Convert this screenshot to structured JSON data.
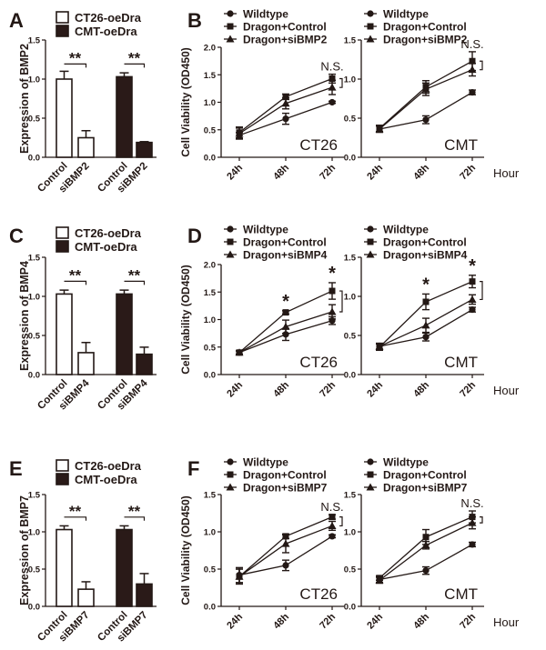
{
  "chart_data": [
    {
      "panel": "A",
      "type": "bar",
      "ylabel": "Expression of BMP2",
      "ylim": [
        0,
        1.5
      ],
      "yticks": [
        "0.0",
        "0.5",
        "1.0",
        "1.5"
      ],
      "legend": [
        {
          "name": "CT26-oeDra",
          "color": "#ffffff"
        },
        {
          "name": "CMT-oeDra",
          "color": "#2a1a18"
        }
      ],
      "categories": [
        "Control",
        "siBMP2",
        "Control",
        "siBMP2"
      ],
      "groups": [
        0,
        0,
        1,
        1
      ],
      "values": [
        1.0,
        0.25,
        1.03,
        0.19
      ],
      "errors": [
        0.1,
        0.09,
        0.05,
        0.01
      ],
      "annotations": [
        "**",
        "**"
      ]
    },
    {
      "panel": "B",
      "type": "line",
      "cell_line": "CT26",
      "ylabel": "Cell Viability (OD450)",
      "ylim": [
        0,
        2
      ],
      "yticks": [
        "0.0",
        "0.5",
        "1.0",
        "1.5",
        "2.0"
      ],
      "x": [
        "24h",
        "48h",
        "72h"
      ],
      "xlabel": "",
      "series": [
        {
          "name": "Wildtype",
          "marker": "circle",
          "values": [
            0.4,
            0.7,
            1.0
          ],
          "errors": [
            0.05,
            0.1,
            0.02
          ]
        },
        {
          "name": "Dragon+Control",
          "marker": "square",
          "values": [
            0.45,
            1.1,
            1.43
          ],
          "errors": [
            0.1,
            0.05,
            0.08
          ]
        },
        {
          "name": "Dragon+siBMP2",
          "marker": "triangle",
          "values": [
            0.43,
            0.98,
            1.27
          ],
          "errors": [
            0.1,
            0.1,
            0.13
          ]
        }
      ],
      "annotations": [
        {
          "x": "72h",
          "text": "N.S."
        }
      ]
    },
    {
      "panel": "",
      "type": "line",
      "cell_line": "CMT",
      "ylabel": "",
      "ylim": [
        0,
        1.5
      ],
      "yticks": [
        "0.0",
        "0.5",
        "1.0",
        "1.5"
      ],
      "x": [
        "24h",
        "48h",
        "72h"
      ],
      "xlabel": "Hour",
      "series": [
        {
          "name": "Wildtype",
          "marker": "circle",
          "values": [
            0.36,
            0.48,
            0.83
          ],
          "errors": [
            0.04,
            0.05,
            0.03
          ]
        },
        {
          "name": "Dragon+Control",
          "marker": "square",
          "values": [
            0.37,
            0.9,
            1.23
          ],
          "errors": [
            0.04,
            0.08,
            0.12
          ]
        },
        {
          "name": "Dragon+siBMP2",
          "marker": "triangle",
          "values": [
            0.36,
            0.87,
            1.12
          ],
          "errors": [
            0.04,
            0.08,
            0.08
          ]
        }
      ],
      "annotations": [
        {
          "x": "72h",
          "text": "N.S."
        }
      ]
    },
    {
      "panel": "C",
      "type": "bar",
      "ylabel": "Expression of BMP4",
      "ylim": [
        0,
        1.5
      ],
      "yticks": [
        "0.0",
        "0.5",
        "1.0",
        "1.5"
      ],
      "legend": [
        {
          "name": "CT26-oeDra",
          "color": "#ffffff"
        },
        {
          "name": "CMT-oeDra",
          "color": "#2a1a18"
        }
      ],
      "categories": [
        "Control",
        "siBMP4",
        "Control",
        "siBMP4"
      ],
      "groups": [
        0,
        0,
        1,
        1
      ],
      "values": [
        1.03,
        0.28,
        1.03,
        0.26
      ],
      "errors": [
        0.05,
        0.13,
        0.05,
        0.09
      ],
      "annotations": [
        "**",
        "**"
      ]
    },
    {
      "panel": "D",
      "type": "line",
      "cell_line": "CT26",
      "ylabel": "Cell Viability (OD450)",
      "ylim": [
        0,
        2
      ],
      "yticks": [
        "0.0",
        "0.5",
        "1.0",
        "1.5",
        "2.0"
      ],
      "x": [
        "24h",
        "48h",
        "72h"
      ],
      "xlabel": "",
      "series": [
        {
          "name": "Wildtype",
          "marker": "circle",
          "values": [
            0.4,
            0.73,
            0.98
          ],
          "errors": [
            0.03,
            0.11,
            0.07
          ]
        },
        {
          "name": "Dragon+Control",
          "marker": "square",
          "values": [
            0.4,
            1.13,
            1.52
          ],
          "errors": [
            0.03,
            0.03,
            0.15
          ]
        },
        {
          "name": "Dragon+siBMP4",
          "marker": "triangle",
          "values": [
            0.4,
            0.87,
            1.14
          ],
          "errors": [
            0.03,
            0.12,
            0.13
          ]
        }
      ],
      "annotations": [
        {
          "x": "48h",
          "text": "*"
        },
        {
          "x": "72h",
          "text": "*"
        }
      ]
    },
    {
      "panel": "",
      "type": "line",
      "cell_line": "CMT",
      "ylabel": "",
      "ylim": [
        0,
        1.5
      ],
      "yticks": [
        "0.0",
        "0.5",
        "1.0",
        "1.5"
      ],
      "x": [
        "24h",
        "48h",
        "72h"
      ],
      "xlabel": "Hour",
      "series": [
        {
          "name": "Wildtype",
          "marker": "circle",
          "values": [
            0.36,
            0.48,
            0.83
          ],
          "errors": [
            0.04,
            0.05,
            0.03
          ]
        },
        {
          "name": "Dragon+Control",
          "marker": "square",
          "values": [
            0.35,
            0.93,
            1.19
          ],
          "errors": [
            0.04,
            0.1,
            0.08
          ]
        },
        {
          "name": "Dragon+siBMP4",
          "marker": "triangle",
          "values": [
            0.36,
            0.63,
            0.96
          ],
          "errors": [
            0.04,
            0.09,
            0.06
          ]
        }
      ],
      "annotations": [
        {
          "x": "48h",
          "text": "*"
        },
        {
          "x": "72h",
          "text": "*"
        }
      ]
    },
    {
      "panel": "E",
      "type": "bar",
      "ylabel": "Expression of BMP7",
      "ylim": [
        0,
        1.5
      ],
      "yticks": [
        "0.0",
        "0.5",
        "1.0",
        "1.5"
      ],
      "legend": [
        {
          "name": "CT26-oeDra",
          "color": "#ffffff"
        },
        {
          "name": "CMT-oeDra",
          "color": "#2a1a18"
        }
      ],
      "categories": [
        "Control",
        "siBMP7",
        "Control",
        "siBMP7"
      ],
      "groups": [
        0,
        0,
        1,
        1
      ],
      "values": [
        1.03,
        0.23,
        1.03,
        0.3
      ],
      "errors": [
        0.05,
        0.1,
        0.05,
        0.14
      ],
      "annotations": [
        "**",
        "**"
      ]
    },
    {
      "panel": "F",
      "type": "line",
      "cell_line": "CT26",
      "ylabel": "Cell Viability (OD450)",
      "ylim": [
        0,
        1.5
      ],
      "yticks": [
        "0.0",
        "0.5",
        "1.0",
        "1.5"
      ],
      "x": [
        "24h",
        "48h",
        "72h"
      ],
      "xlabel": "",
      "series": [
        {
          "name": "Wildtype",
          "marker": "circle",
          "values": [
            0.42,
            0.55,
            0.94
          ],
          "errors": [
            0.1,
            0.07,
            0.02
          ]
        },
        {
          "name": "Dragon+Control",
          "marker": "square",
          "values": [
            0.4,
            0.94,
            1.2
          ],
          "errors": [
            0.1,
            0.03,
            0.03
          ]
        },
        {
          "name": "Dragon+siBMP7",
          "marker": "triangle",
          "values": [
            0.4,
            0.84,
            1.08
          ],
          "errors": [
            0.1,
            0.12,
            0.06
          ]
        }
      ],
      "annotations": [
        {
          "x": "72h",
          "text": "N.S."
        }
      ]
    },
    {
      "panel": "",
      "type": "line",
      "cell_line": "CMT",
      "ylabel": "",
      "ylim": [
        0,
        1.5
      ],
      "yticks": [
        "0.0",
        "0.5",
        "1.0",
        "1.5"
      ],
      "x": [
        "24h",
        "48h",
        "72h"
      ],
      "xlabel": "Hour",
      "series": [
        {
          "name": "Wildtype",
          "marker": "circle",
          "values": [
            0.36,
            0.48,
            0.83
          ],
          "errors": [
            0.04,
            0.05,
            0.03
          ]
        },
        {
          "name": "Dragon+Control",
          "marker": "square",
          "values": [
            0.38,
            0.93,
            1.2
          ],
          "errors": [
            0.03,
            0.1,
            0.08
          ]
        },
        {
          "name": "Dragon+siBMP7",
          "marker": "triangle",
          "values": [
            0.35,
            0.82,
            1.12
          ],
          "errors": [
            0.04,
            0.05,
            0.08
          ]
        }
      ],
      "annotations": [
        {
          "x": "72h",
          "text": "N.S."
        }
      ]
    }
  ]
}
